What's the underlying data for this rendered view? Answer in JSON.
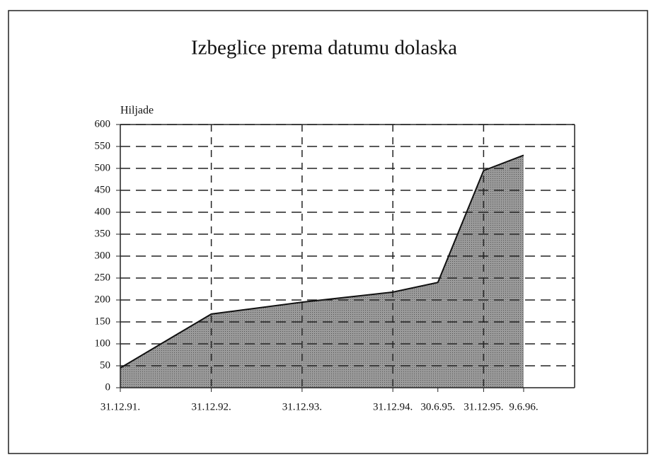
{
  "chart_data": {
    "type": "area",
    "title": "Izbeglice prema datumu dolaska",
    "ylabel": "Hiljade",
    "x": [
      "31.12.91.",
      "31.12.92.",
      "31.12.93.",
      "31.12.94.",
      "30.6.95.",
      "31.12.95.",
      "9.6.96."
    ],
    "values": [
      45,
      168,
      195,
      218,
      240,
      495,
      530
    ],
    "color": "#8c8c8c",
    "xlim": [
      "31.12.91.",
      "31.12.96."
    ],
    "xticks": [
      "31.12.92.",
      "31.12.93.",
      "31.12.94.",
      "31.12.95."
    ],
    "ylim": [
      0,
      600
    ],
    "yticks": [
      0,
      50,
      100,
      150,
      200,
      250,
      300,
      350,
      400,
      450,
      500,
      550,
      600
    ],
    "grid": true
  }
}
